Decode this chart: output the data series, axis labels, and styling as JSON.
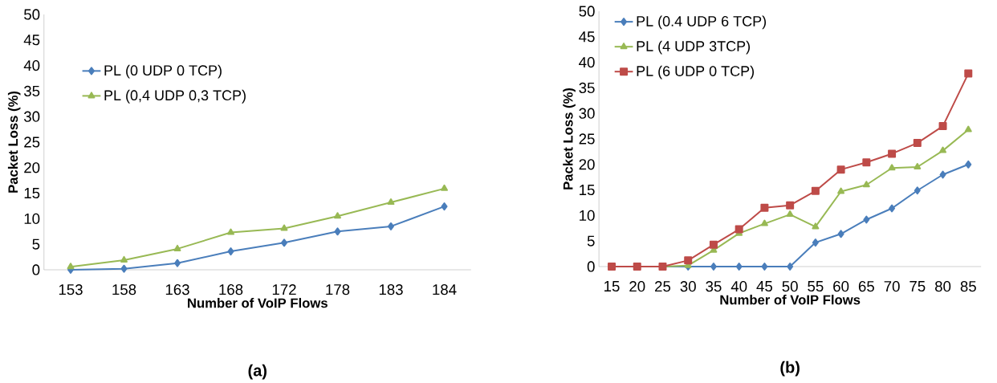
{
  "chart_data": [
    {
      "type": "line",
      "xlabel": "Number of VoIP Flows",
      "ylabel": "Packet Loss (%)",
      "annotations": [
        "(a)"
      ],
      "categories": [
        "153",
        "158",
        "163",
        "168",
        "172",
        "178",
        "183",
        "184"
      ],
      "series": [
        {
          "name": "PL (0 UDP 0 TCP)",
          "color": "#4a7ebb",
          "marker": "diamond",
          "values": [
            0,
            0.2,
            1.3,
            3.6,
            5.3,
            7.5,
            8.5,
            12.4
          ]
        },
        {
          "name": "PL (0,4 UDP 0,3 TCP)",
          "color": "#98b954",
          "marker": "triangle",
          "values": [
            0.6,
            1.9,
            4.1,
            7.3,
            8.1,
            10.5,
            13.2,
            15.9
          ]
        }
      ],
      "ylim": [
        0,
        50
      ],
      "yticks": [
        0,
        5,
        10,
        15,
        20,
        25,
        30,
        35,
        40,
        45,
        50
      ],
      "grid": false,
      "legend": "left"
    },
    {
      "type": "line",
      "xlabel": "Number of VoIP Flows",
      "ylabel": "Packet Loss (%)",
      "annotations": [
        "(b)"
      ],
      "categories": [
        "15",
        "20",
        "25",
        "30",
        "35",
        "40",
        "45",
        "50",
        "55",
        "60",
        "65",
        "70",
        "75",
        "80",
        "85"
      ],
      "series": [
        {
          "name": "PL (0.4 UDP 6 TCP)",
          "color": "#4a7ebb",
          "marker": "diamond",
          "values": [
            0,
            0,
            0,
            0,
            0,
            0,
            0,
            0,
            4.7,
            6.4,
            9.2,
            11.4,
            14.9,
            18,
            20
          ]
        },
        {
          "name": "PL (4 UDP 3TCP)",
          "color": "#98b954",
          "marker": "triangle",
          "values": [
            0,
            0,
            0,
            0.2,
            3.2,
            6.5,
            8.4,
            10.2,
            7.8,
            14.7,
            16,
            19.3,
            19.5,
            22.7,
            26.8
          ]
        },
        {
          "name": "PL (6 UDP 0 TCP)",
          "color": "#be4b48",
          "marker": "square",
          "values": [
            0,
            0,
            0,
            1.2,
            4.3,
            7.3,
            11.5,
            12,
            14.8,
            19,
            20.4,
            22.1,
            24.2,
            27.5,
            37.8
          ]
        }
      ],
      "ylim": [
        0,
        50
      ],
      "yticks": [
        0,
        5,
        10,
        15,
        20,
        25,
        30,
        35,
        40,
        45,
        50
      ],
      "grid": false,
      "legend": "top left"
    }
  ]
}
